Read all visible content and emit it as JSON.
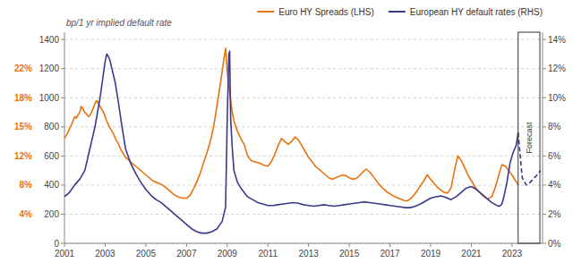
{
  "chart_data": {
    "type": "line",
    "ylabel": "bp/1 yr implied default rate",
    "xlim": [
      2001.0,
      2024.5
    ],
    "xticks": [
      2001,
      2003,
      2005,
      2007,
      2009,
      2011,
      2013,
      2015,
      2017,
      2019,
      2021,
      2023
    ],
    "ylim": [
      0,
      1450
    ],
    "yticks": [
      0,
      200,
      400,
      600,
      800,
      1000,
      1200,
      1400
    ],
    "y2lim": [
      0,
      14.5
    ],
    "y2ticks": [
      {
        "value": 0,
        "label": "0%"
      },
      {
        "value": 2,
        "label": "2%"
      },
      {
        "value": 4,
        "label": "4%"
      },
      {
        "value": 6,
        "label": "6%"
      },
      {
        "value": 8,
        "label": "8%"
      },
      {
        "value": 10,
        "label": "10%"
      },
      {
        "value": 12,
        "label": "12%"
      },
      {
        "value": 14,
        "label": "14%"
      }
    ],
    "grid": true,
    "legend": "top-right",
    "annotations": [
      {
        "text": "4%",
        "y": 200
      },
      {
        "text": "8%",
        "y": 400
      },
      {
        "text": "12%",
        "y": 600
      },
      {
        "text": "15%",
        "y": 800
      },
      {
        "text": "18%",
        "y": 1000
      },
      {
        "text": "22%",
        "y": 1200
      },
      {
        "text": "Forecast",
        "x": 2023.3
      }
    ],
    "series": [
      {
        "name": "Euro HY Spreads (LHS)",
        "color": "#E8720C",
        "axis": "y",
        "x": [
          2001.0,
          2001.08,
          2001.17,
          2001.25,
          2001.33,
          2001.42,
          2001.5,
          2001.58,
          2001.67,
          2001.75,
          2001.83,
          2001.92,
          2002.0,
          2002.08,
          2002.17,
          2002.25,
          2002.33,
          2002.42,
          2002.5,
          2002.58,
          2002.67,
          2002.75,
          2002.83,
          2002.92,
          2003.0,
          2003.08,
          2003.17,
          2003.25,
          2003.33,
          2003.42,
          2003.5,
          2003.58,
          2003.67,
          2003.75,
          2003.83,
          2003.92,
          2004.0,
          2004.17,
          2004.33,
          2004.5,
          2004.67,
          2004.83,
          2005.0,
          2005.17,
          2005.33,
          2005.5,
          2005.67,
          2005.83,
          2006.0,
          2006.17,
          2006.33,
          2006.5,
          2006.67,
          2006.83,
          2007.0,
          2007.17,
          2007.33,
          2007.5,
          2007.67,
          2007.83,
          2008.0,
          2008.17,
          2008.33,
          2008.5,
          2008.67,
          2008.83,
          2008.92,
          2009.0,
          2009.08,
          2009.17,
          2009.25,
          2009.33,
          2009.5,
          2009.67,
          2009.83,
          2010.0,
          2010.17,
          2010.33,
          2010.5,
          2010.67,
          2010.83,
          2011.0,
          2011.17,
          2011.33,
          2011.5,
          2011.67,
          2011.83,
          2012.0,
          2012.17,
          2012.33,
          2012.5,
          2012.67,
          2012.83,
          2013.0,
          2013.17,
          2013.33,
          2013.5,
          2013.67,
          2013.83,
          2014.0,
          2014.17,
          2014.33,
          2014.5,
          2014.67,
          2014.83,
          2015.0,
          2015.17,
          2015.33,
          2015.5,
          2015.67,
          2015.83,
          2016.0,
          2016.17,
          2016.33,
          2016.5,
          2016.67,
          2016.83,
          2017.0,
          2017.17,
          2017.33,
          2017.5,
          2017.67,
          2017.83,
          2018.0,
          2018.17,
          2018.33,
          2018.5,
          2018.67,
          2018.83,
          2019.0,
          2019.17,
          2019.33,
          2019.5,
          2019.67,
          2019.83,
          2020.0,
          2020.17,
          2020.33,
          2020.5,
          2020.67,
          2020.83,
          2021.0,
          2021.17,
          2021.33,
          2021.5,
          2021.67,
          2021.83,
          2022.0,
          2022.17,
          2022.33,
          2022.5,
          2022.67,
          2022.83,
          2023.0,
          2023.08,
          2023.17,
          2023.25,
          2023.3
        ],
        "values": [
          720,
          740,
          760,
          790,
          810,
          840,
          870,
          860,
          880,
          900,
          940,
          920,
          900,
          890,
          870,
          880,
          900,
          930,
          960,
          980,
          960,
          940,
          920,
          900,
          870,
          840,
          810,
          790,
          770,
          750,
          720,
          700,
          680,
          650,
          630,
          610,
          590,
          570,
          550,
          530,
          510,
          490,
          470,
          450,
          430,
          420,
          410,
          400,
          380,
          360,
          340,
          325,
          315,
          310,
          310,
          330,
          370,
          420,
          480,
          550,
          620,
          700,
          800,
          950,
          1100,
          1260,
          1340,
          1180,
          1080,
          980,
          900,
          840,
          770,
          720,
          680,
          600,
          570,
          560,
          555,
          545,
          535,
          530,
          560,
          610,
          670,
          720,
          700,
          680,
          700,
          730,
          710,
          670,
          630,
          590,
          560,
          530,
          510,
          490,
          470,
          450,
          440,
          450,
          460,
          470,
          465,
          450,
          440,
          445,
          465,
          490,
          510,
          490,
          460,
          430,
          400,
          375,
          355,
          340,
          325,
          315,
          305,
          295,
          290,
          305,
          330,
          360,
          395,
          430,
          470,
          440,
          410,
          385,
          365,
          350,
          345,
          380,
          500,
          600,
          570,
          520,
          470,
          430,
          390,
          360,
          335,
          315,
          305,
          320,
          380,
          460,
          540,
          530,
          500,
          470,
          450,
          430,
          415,
          400
        ]
      },
      {
        "name": "European HY default rates (RHS)",
        "color": "#3A3A8C",
        "axis": "y2",
        "x": [
          2001.0,
          2001.25,
          2001.5,
          2001.75,
          2002.0,
          2002.25,
          2002.5,
          2002.75,
          2003.0,
          2003.08,
          2003.17,
          2003.25,
          2003.33,
          2003.5,
          2003.67,
          2003.83,
          2004.0,
          2004.25,
          2004.5,
          2004.75,
          2005.0,
          2005.25,
          2005.5,
          2005.75,
          2006.0,
          2006.25,
          2006.5,
          2006.75,
          2007.0,
          2007.25,
          2007.5,
          2007.75,
          2008.0,
          2008.25,
          2008.5,
          2008.75,
          2008.92,
          2009.0,
          2009.08,
          2009.12,
          2009.17,
          2009.25,
          2009.33,
          2009.5,
          2009.67,
          2009.83,
          2010.0,
          2010.25,
          2010.5,
          2010.75,
          2011.0,
          2011.25,
          2011.5,
          2011.75,
          2012.0,
          2012.25,
          2012.5,
          2012.75,
          2013.0,
          2013.25,
          2013.5,
          2013.75,
          2014.0,
          2014.25,
          2014.5,
          2014.75,
          2015.0,
          2015.25,
          2015.5,
          2015.75,
          2016.0,
          2016.25,
          2016.5,
          2016.75,
          2017.0,
          2017.25,
          2017.5,
          2017.75,
          2018.0,
          2018.25,
          2018.5,
          2018.75,
          2019.0,
          2019.25,
          2019.5,
          2019.75,
          2020.0,
          2020.25,
          2020.5,
          2020.75,
          2021.0,
          2021.25,
          2021.5,
          2021.75,
          2022.0,
          2022.25,
          2022.4,
          2022.5,
          2022.6,
          2022.75,
          2022.9,
          2023.0,
          2023.1,
          2023.2,
          2023.3
        ],
        "values": [
          3.2,
          3.5,
          4.0,
          4.4,
          5.0,
          6.5,
          8.0,
          10.0,
          12.5,
          13.0,
          12.8,
          12.5,
          12.0,
          11.0,
          9.5,
          8.0,
          6.5,
          5.5,
          4.8,
          4.2,
          3.7,
          3.3,
          3.0,
          2.8,
          2.5,
          2.2,
          1.9,
          1.6,
          1.3,
          1.0,
          0.8,
          0.7,
          0.7,
          0.8,
          1.0,
          1.5,
          2.5,
          8.5,
          13.0,
          13.2,
          8.5,
          6.5,
          5.0,
          4.2,
          3.8,
          3.5,
          3.2,
          3.0,
          2.8,
          2.7,
          2.6,
          2.6,
          2.65,
          2.7,
          2.75,
          2.8,
          2.75,
          2.65,
          2.6,
          2.55,
          2.6,
          2.65,
          2.6,
          2.55,
          2.6,
          2.65,
          2.7,
          2.75,
          2.8,
          2.85,
          2.8,
          2.75,
          2.7,
          2.65,
          2.6,
          2.55,
          2.5,
          2.45,
          2.45,
          2.55,
          2.7,
          2.9,
          3.1,
          3.2,
          3.25,
          3.15,
          3.0,
          3.2,
          3.5,
          3.8,
          3.9,
          3.7,
          3.4,
          3.1,
          2.8,
          2.6,
          2.55,
          2.7,
          3.2,
          4.2,
          5.5,
          6.0,
          6.4,
          6.7,
          7.6
        ]
      },
      {
        "color": "#3A3A8C",
        "axis": "y2",
        "line_style": "dashed",
        "x": [
          2023.3,
          2023.5,
          2023.7,
          2023.9,
          2024.1,
          2024.3,
          2024.4
        ],
        "values": [
          7.6,
          4.5,
          4.0,
          4.2,
          4.5,
          4.8,
          5.0
        ]
      }
    ]
  }
}
